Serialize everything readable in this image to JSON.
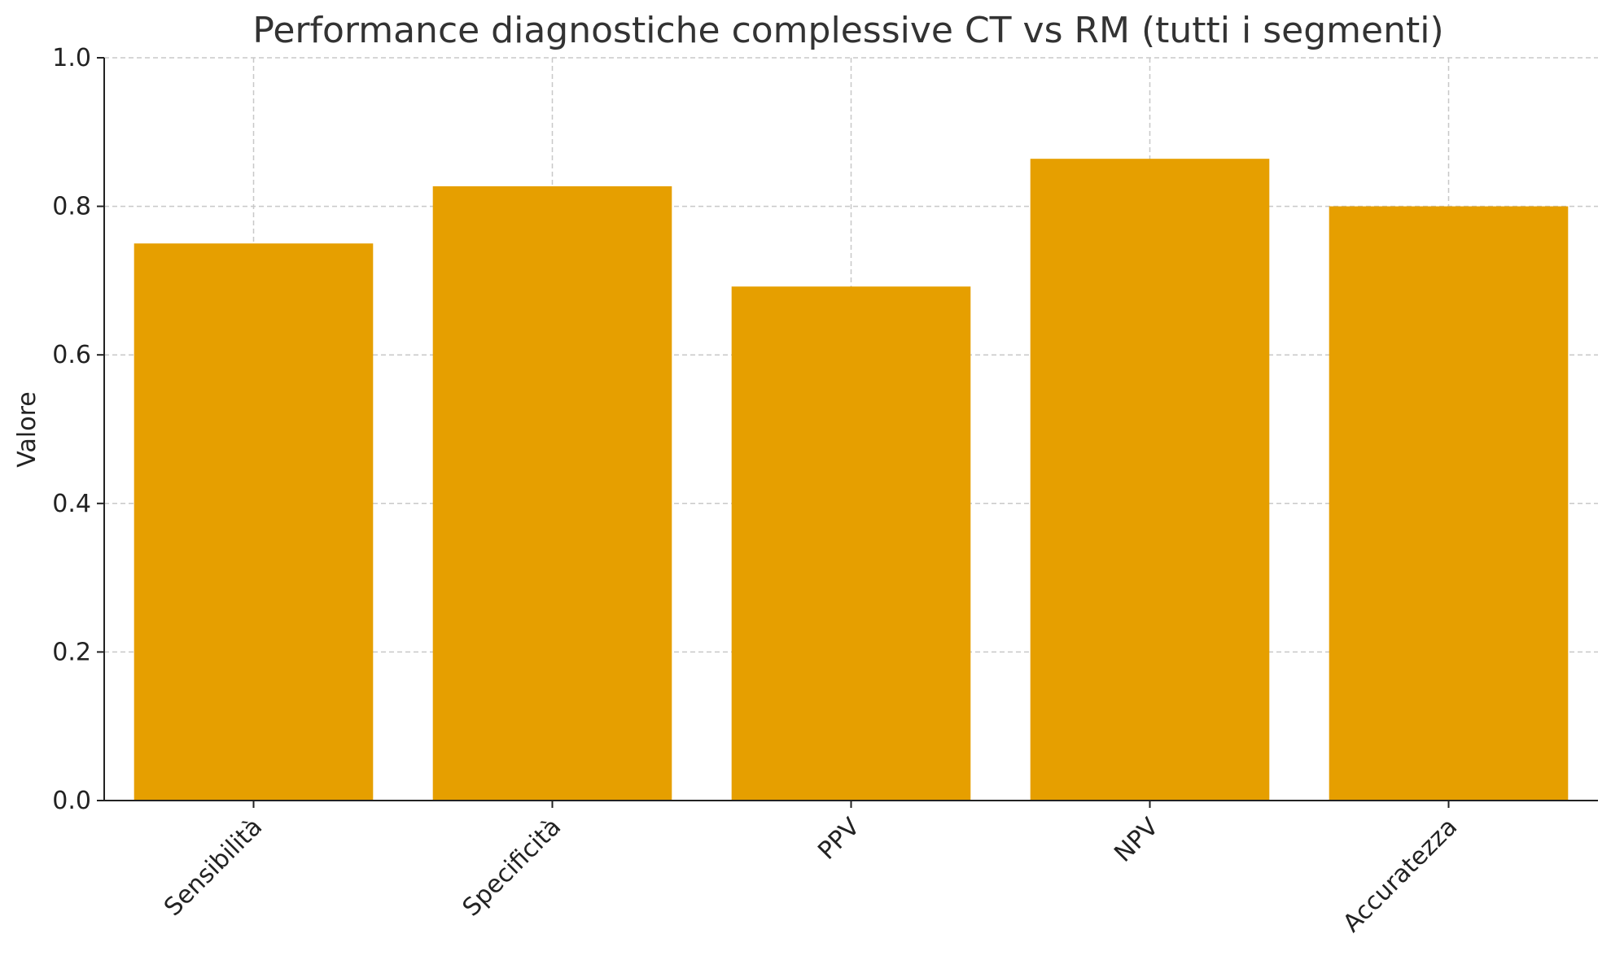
{
  "chart_data": {
    "type": "bar",
    "title": "Performance diagnostiche complessive CT vs RM (tutti i segmenti)",
    "xlabel": "",
    "ylabel": "Valore",
    "categories": [
      "Sensibilità",
      "Specificità",
      "PPV",
      "NPV",
      "Accuratezza"
    ],
    "values": [
      0.75,
      0.827,
      0.692,
      0.864,
      0.8
    ],
    "ylim": [
      0,
      1.0
    ],
    "yticks": [
      "0.0",
      "0.2",
      "0.4",
      "0.6",
      "0.8",
      "1.0"
    ],
    "grid": true,
    "bar_color": "#E69F00"
  }
}
